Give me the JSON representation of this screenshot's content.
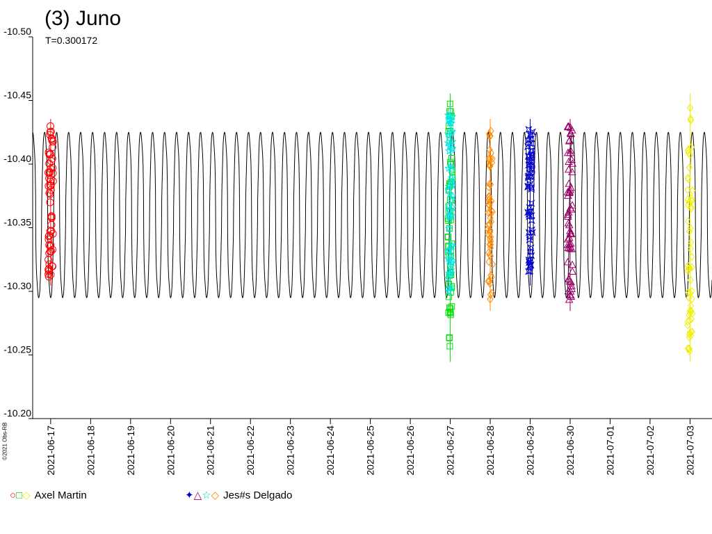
{
  "credit": "©2021 Obs-RB",
  "chart_data": {
    "type": "scatter",
    "title": "(3) Juno",
    "subtitle": "T=0.300172",
    "xlabel": "",
    "ylabel": "",
    "ylim": [
      -10.5,
      -10.2
    ],
    "y_inverted": true,
    "x_ticks": [
      "2021-06-17",
      "2021-06-18",
      "2021-06-19",
      "2021-06-20",
      "2021-06-21",
      "2021-06-22",
      "2021-06-23",
      "2021-06-24",
      "2021-06-25",
      "2021-06-26",
      "2021-06-27",
      "2021-06-28",
      "2021-06-29",
      "2021-06-30",
      "2021-07-01",
      "2021-07-02",
      "2021-07-03"
    ],
    "y_ticks": [
      "-10.50",
      "-10.45",
      "-10.40",
      "-10.35",
      "-10.30",
      "-10.25",
      "-10.20"
    ],
    "y_tick_values": [
      -10.5,
      -10.45,
      -10.4,
      -10.35,
      -10.3,
      -10.25,
      -10.2
    ],
    "xlim_days": [
      -0.45,
      16.55
    ],
    "model_curve": {
      "period_days": 0.300172,
      "min_mag": -10.425,
      "max_mag": -10.295
    },
    "series": [
      {
        "name": "",
        "group": "Axel Martin",
        "marker": "circle",
        "color": "#ff0000",
        "day_range": [
          -0.15,
          0.15
        ],
        "mag_range": [
          -10.43,
          -10.31
        ]
      },
      {
        "name": "",
        "group": "Axel Martin",
        "marker": "square",
        "color": "#00dd00",
        "day_range": [
          9.85,
          10.15
        ],
        "mag_range": [
          -10.45,
          -10.25
        ]
      },
      {
        "name": "",
        "group": "Jes#s Delgado",
        "marker": "star4",
        "color": "#0000cc",
        "day_range": [
          11.85,
          12.15
        ],
        "mag_range": [
          -10.43,
          -10.31
        ]
      },
      {
        "name": "",
        "group": "Jes#s Delgado",
        "marker": "triangle",
        "color": "#990066",
        "day_range": [
          12.85,
          13.15
        ],
        "mag_range": [
          -10.43,
          -10.29
        ]
      },
      {
        "name": "",
        "group": "Jes#s Delgado",
        "marker": "star",
        "color": "#00e5e5",
        "day_range": [
          9.85,
          10.15
        ],
        "mag_range": [
          -10.44,
          -10.3
        ]
      },
      {
        "name": "",
        "group": "Jes#s Delgado",
        "marker": "diamond",
        "color": "#ff8800",
        "day_range": [
          10.85,
          11.15
        ],
        "mag_range": [
          -10.43,
          -10.29
        ]
      },
      {
        "name": "",
        "group": "Axel Martin",
        "marker": "diamond",
        "color": "#eeee00",
        "day_range": [
          15.85,
          16.15
        ],
        "mag_range": [
          -10.45,
          -10.25
        ]
      }
    ],
    "grid": false
  },
  "legend": [
    {
      "symbols": "○□◇",
      "colors": [
        "#ff0000",
        "#00cc00",
        "#eeee00"
      ],
      "label": "Axel Martin"
    },
    {
      "symbols": "✦△☆◇",
      "colors": [
        "#0000cc",
        "#990066",
        "#00cccc",
        "#ff8800"
      ],
      "label": "Jes#s Delgado"
    }
  ]
}
